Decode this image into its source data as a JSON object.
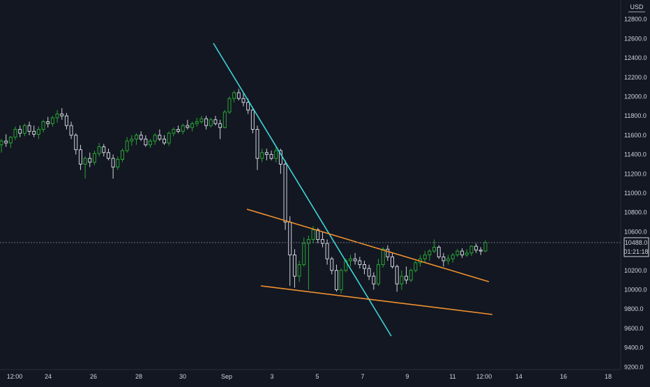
{
  "chart": {
    "currency": "USD",
    "price_label": "10488.0",
    "countdown_label": "01:21:18"
  },
  "chart_data": {
    "type": "candlestick",
    "title": "",
    "xlabel": "",
    "ylabel": "",
    "y_axis": {
      "ticks": [
        9200,
        9400,
        9600,
        9800,
        10000,
        10200,
        10400,
        10600,
        10800,
        11000,
        11200,
        11400,
        11600,
        11800,
        12000,
        12200,
        12400,
        12600,
        12800
      ],
      "tick_labels": [
        "9200.0",
        "9400.0",
        "9600.0",
        "9800.0",
        "10000.0",
        "10200.0",
        "10400.0",
        "10600.0",
        "10800.0",
        "11000.0",
        "11200.0",
        "11400.0",
        "11600.0",
        "11800.0",
        "12000.0",
        "12200.0",
        "12400.0",
        "12600.0",
        "12800.0"
      ],
      "range": [
        9150,
        12950
      ]
    },
    "x_axis": {
      "tick_labels": [
        "12:00",
        "24",
        "26",
        "28",
        "30",
        "Sep",
        "3",
        "5",
        "7",
        "9",
        "11",
        "12:00",
        "14",
        "16",
        "18"
      ]
    },
    "grid": false,
    "colors": {
      "background": "#131722",
      "up": "#26a633",
      "down": "#d1d4dc",
      "trend_descending": "#3cd6d6",
      "channel": "#f0922e",
      "price_line": "#6b7280",
      "axis_text": "#d1d4dc"
    },
    "last_price": 10488.0,
    "candles": [
      [
        11500,
        11560,
        11420,
        11540
      ],
      [
        11540,
        11610,
        11480,
        11520
      ],
      [
        11520,
        11590,
        11470,
        11580
      ],
      [
        11580,
        11690,
        11550,
        11660
      ],
      [
        11660,
        11700,
        11580,
        11620
      ],
      [
        11620,
        11720,
        11590,
        11700
      ],
      [
        11700,
        11740,
        11600,
        11640
      ],
      [
        11640,
        11700,
        11580,
        11610
      ],
      [
        11610,
        11690,
        11560,
        11660
      ],
      [
        11660,
        11760,
        11630,
        11740
      ],
      [
        11740,
        11790,
        11680,
        11720
      ],
      [
        11720,
        11800,
        11690,
        11780
      ],
      [
        11780,
        11860,
        11730,
        11820
      ],
      [
        11820,
        11880,
        11760,
        11800
      ],
      [
        11800,
        11830,
        11660,
        11700
      ],
      [
        11700,
        11740,
        11560,
        11600
      ],
      [
        11600,
        11620,
        11400,
        11450
      ],
      [
        11450,
        11500,
        11240,
        11300
      ],
      [
        11300,
        11380,
        11150,
        11360
      ],
      [
        11360,
        11420,
        11270,
        11320
      ],
      [
        11320,
        11440,
        11290,
        11410
      ],
      [
        11410,
        11520,
        11380,
        11480
      ],
      [
        11480,
        11510,
        11380,
        11420
      ],
      [
        11420,
        11460,
        11340,
        11360
      ],
      [
        11360,
        11400,
        11150,
        11270
      ],
      [
        11270,
        11380,
        11240,
        11350
      ],
      [
        11350,
        11460,
        11320,
        11440
      ],
      [
        11440,
        11580,
        11420,
        11540
      ],
      [
        11540,
        11600,
        11490,
        11560
      ],
      [
        11560,
        11620,
        11500,
        11600
      ],
      [
        11600,
        11640,
        11540,
        11560
      ],
      [
        11560,
        11600,
        11480,
        11500
      ],
      [
        11500,
        11560,
        11470,
        11540
      ],
      [
        11540,
        11620,
        11500,
        11600
      ],
      [
        11600,
        11660,
        11540,
        11560
      ],
      [
        11560,
        11600,
        11500,
        11520
      ],
      [
        11520,
        11640,
        11490,
        11620
      ],
      [
        11620,
        11680,
        11590,
        11660
      ],
      [
        11660,
        11700,
        11620,
        11640
      ],
      [
        11640,
        11720,
        11610,
        11700
      ],
      [
        11700,
        11760,
        11660,
        11680
      ],
      [
        11680,
        11740,
        11640,
        11720
      ],
      [
        11720,
        11780,
        11690,
        11740
      ],
      [
        11740,
        11800,
        11720,
        11770
      ],
      [
        11770,
        11800,
        11660,
        11700
      ],
      [
        11700,
        11780,
        11680,
        11760
      ],
      [
        11760,
        11800,
        11700,
        11720
      ],
      [
        11720,
        11760,
        11560,
        11680
      ],
      [
        11680,
        11860,
        11670,
        11840
      ],
      [
        11840,
        12000,
        11820,
        11980
      ],
      [
        11980,
        12060,
        11940,
        12040
      ],
      [
        12040,
        12080,
        11960,
        11980
      ],
      [
        11980,
        12040,
        11900,
        11940
      ],
      [
        11940,
        11980,
        11820,
        11860
      ],
      [
        11860,
        11880,
        11620,
        11660
      ],
      [
        11660,
        11700,
        11240,
        11360
      ],
      [
        11360,
        11460,
        11320,
        11420
      ],
      [
        11420,
        11460,
        11340,
        11400
      ],
      [
        11400,
        11440,
        11340,
        11360
      ],
      [
        11360,
        11480,
        11320,
        11440
      ],
      [
        11440,
        11460,
        11200,
        11300
      ],
      [
        11300,
        11340,
        10620,
        10700
      ],
      [
        10700,
        10760,
        10040,
        10360
      ],
      [
        10360,
        10420,
        10020,
        10140
      ],
      [
        10140,
        10300,
        10080,
        10260
      ],
      [
        10260,
        10540,
        10240,
        10480
      ],
      [
        10480,
        10560,
        10000,
        10520
      ],
      [
        10520,
        10660,
        10480,
        10620
      ],
      [
        10620,
        10640,
        10480,
        10520
      ],
      [
        10520,
        10600,
        10440,
        10480
      ],
      [
        10480,
        10520,
        10260,
        10320
      ],
      [
        10320,
        10340,
        10160,
        10200
      ],
      [
        10200,
        10260,
        9980,
        10000
      ],
      [
        10000,
        10220,
        9960,
        10200
      ],
      [
        10200,
        10320,
        10180,
        10300
      ],
      [
        10300,
        10360,
        10240,
        10320
      ],
      [
        10320,
        10380,
        10260,
        10300
      ],
      [
        10300,
        10340,
        10220,
        10260
      ],
      [
        10260,
        10300,
        10160,
        10220
      ],
      [
        10220,
        10260,
        10100,
        10140
      ],
      [
        10140,
        10180,
        10000,
        10060
      ],
      [
        10060,
        10320,
        10040,
        10260
      ],
      [
        10260,
        10440,
        10230,
        10420
      ],
      [
        10420,
        10460,
        10300,
        10340
      ],
      [
        10340,
        10380,
        10220,
        10240
      ],
      [
        10240,
        10260,
        9980,
        10060
      ],
      [
        10060,
        10200,
        10000,
        10140
      ],
      [
        10140,
        10240,
        10060,
        10100
      ],
      [
        10100,
        10220,
        10080,
        10200
      ],
      [
        10200,
        10300,
        10180,
        10280
      ],
      [
        10280,
        10360,
        10240,
        10320
      ],
      [
        10320,
        10400,
        10280,
        10360
      ],
      [
        10360,
        10420,
        10300,
        10400
      ],
      [
        10400,
        10520,
        10380,
        10440
      ],
      [
        10440,
        10460,
        10320,
        10340
      ],
      [
        10340,
        10380,
        10240,
        10300
      ],
      [
        10300,
        10360,
        10260,
        10320
      ],
      [
        10320,
        10380,
        10280,
        10360
      ],
      [
        10360,
        10420,
        10340,
        10400
      ],
      [
        10400,
        10430,
        10330,
        10360
      ],
      [
        10360,
        10420,
        10340,
        10380
      ],
      [
        10380,
        10460,
        10350,
        10450
      ],
      [
        10450,
        10480,
        10380,
        10410
      ],
      [
        10410,
        10440,
        10360,
        10400
      ],
      [
        10400,
        10510,
        10390,
        10488
      ]
    ],
    "drawings": [
      {
        "name": "descending-trendline",
        "color": "cyan"
      },
      {
        "name": "channel-upper-line",
        "color": "orange"
      },
      {
        "name": "channel-lower-line",
        "color": "orange"
      }
    ]
  }
}
